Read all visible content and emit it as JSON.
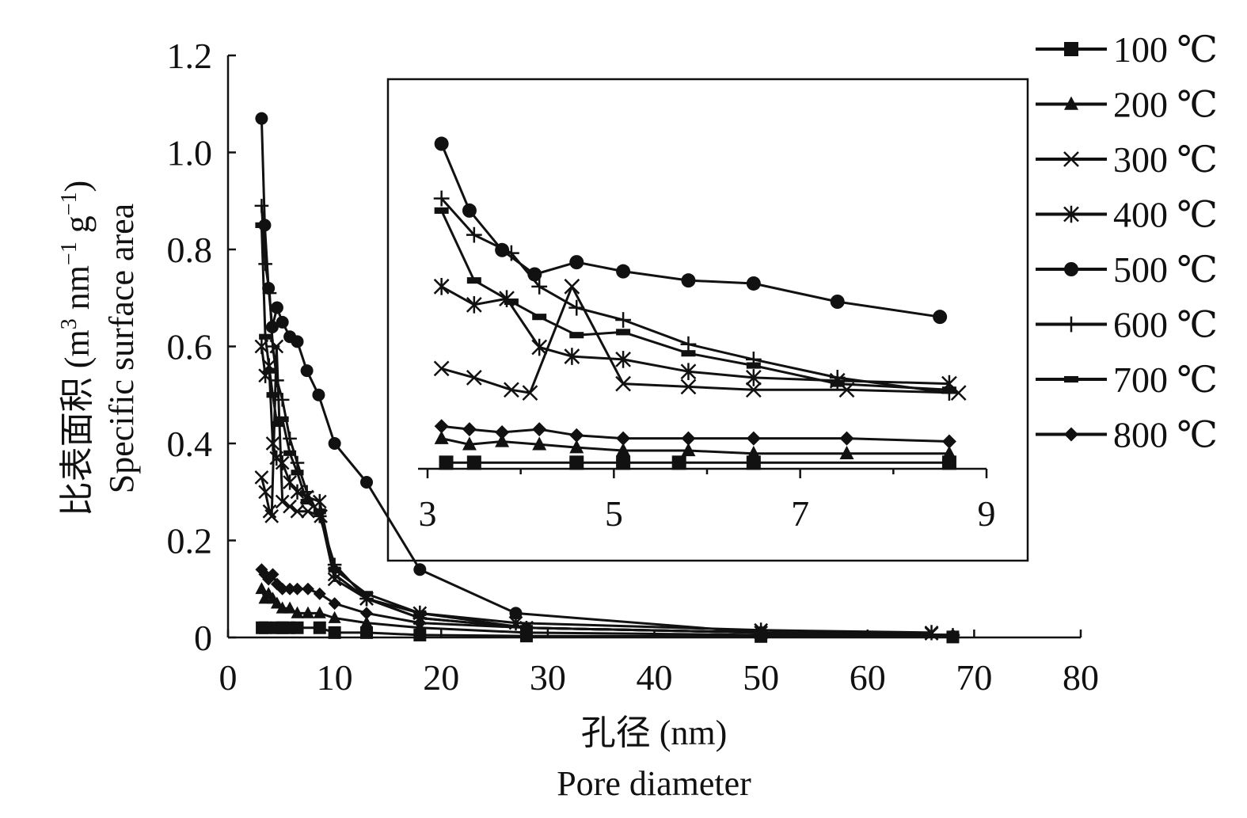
{
  "chart_data": {
    "type": "line",
    "xlabel_line1": "孔径 (nm)",
    "xlabel_line2": "Pore diameter",
    "ylabel_line1_prefix": "比表面积 (m",
    "ylabel_line1_sup1": "3",
    "ylabel_line1_mid": " nm",
    "ylabel_line1_sup2": "−1",
    "ylabel_line1_mid2": " g",
    "ylabel_line1_sup3": "−1",
    "ylabel_line1_suffix": ")",
    "ylabel_line2": "Specific surface area",
    "xlim": [
      0,
      80
    ],
    "ylim": [
      0,
      1.2
    ],
    "x_ticks": [
      "0",
      "10",
      "20",
      "30",
      "40",
      "50",
      "60",
      "70",
      "80"
    ],
    "y_ticks": [
      "0",
      "0.2",
      "0.4",
      "0.6",
      "0.8",
      "1.0",
      "1.2"
    ],
    "inset": {
      "xlim": [
        3,
        9
      ],
      "x_ticks": [
        "3",
        "5",
        "7",
        "9"
      ]
    },
    "series": [
      {
        "name": "100 ℃",
        "marker": "square",
        "x": [
          3.2,
          3.5,
          4.6,
          5.1,
          5.7,
          6.5,
          8.6,
          10,
          13,
          18,
          28,
          50,
          68
        ],
        "y": [
          0.02,
          0.02,
          0.02,
          0.02,
          0.02,
          0.02,
          0.02,
          0.01,
          0.01,
          0.005,
          0.003,
          0.002,
          0.001
        ]
      },
      {
        "name": "200 ℃",
        "marker": "triangle",
        "x": [
          3.15,
          3.45,
          3.8,
          4.2,
          4.6,
          5.1,
          5.8,
          6.5,
          7.5,
          8.6,
          10,
          13,
          18,
          28,
          50,
          68
        ],
        "y": [
          0.1,
          0.08,
          0.09,
          0.08,
          0.07,
          0.06,
          0.06,
          0.05,
          0.05,
          0.05,
          0.04,
          0.03,
          0.02,
          0.01,
          0.005,
          0.003
        ]
      },
      {
        "name": "300 ℃",
        "marker": "x",
        "x": [
          3.15,
          3.5,
          3.9,
          4.1,
          4.55,
          5.1,
          5.8,
          6.5,
          7.5,
          8.7,
          10,
          13,
          18,
          28,
          50,
          66
        ],
        "y": [
          0.33,
          0.3,
          0.26,
          0.25,
          0.6,
          0.28,
          0.27,
          0.26,
          0.26,
          0.25,
          0.12,
          0.08,
          0.04,
          0.02,
          0.01,
          0.008
        ]
      },
      {
        "name": "400 ℃",
        "marker": "star",
        "x": [
          3.15,
          3.5,
          3.85,
          4.2,
          4.55,
          5.1,
          5.8,
          6.5,
          7.4,
          8.6,
          10,
          13,
          18,
          27,
          50,
          66
        ],
        "y": [
          0.6,
          0.54,
          0.56,
          0.4,
          0.37,
          0.36,
          0.32,
          0.3,
          0.29,
          0.28,
          0.13,
          0.08,
          0.05,
          0.03,
          0.015,
          0.01
        ]
      },
      {
        "name": "500 ℃",
        "marker": "circle",
        "x": [
          3.15,
          3.45,
          3.8,
          4.15,
          4.6,
          5.1,
          5.8,
          6.5,
          7.4,
          8.5,
          10,
          13,
          18,
          27,
          50
        ],
        "y": [
          1.07,
          0.85,
          0.72,
          0.64,
          0.68,
          0.65,
          0.62,
          0.61,
          0.55,
          0.5,
          0.4,
          0.32,
          0.14,
          0.05,
          0.01
        ]
      },
      {
        "name": "600 ℃",
        "marker": "plus",
        "x": [
          3.15,
          3.5,
          3.9,
          4.2,
          4.6,
          5.1,
          5.8,
          6.5,
          7.4,
          8.6,
          10,
          13,
          18,
          28,
          50,
          68
        ],
        "y": [
          0.89,
          0.77,
          0.71,
          0.6,
          0.53,
          0.49,
          0.41,
          0.36,
          0.3,
          0.25,
          0.15,
          0.08,
          0.04,
          0.02,
          0.01,
          0.005
        ]
      },
      {
        "name": "700 ℃",
        "marker": "dash",
        "x": [
          3.15,
          3.5,
          3.9,
          4.2,
          4.6,
          5.1,
          5.8,
          6.5,
          7.4,
          8.6,
          10,
          13,
          18,
          28,
          50,
          68
        ],
        "y": [
          0.85,
          0.62,
          0.55,
          0.5,
          0.44,
          0.45,
          0.38,
          0.34,
          0.28,
          0.26,
          0.14,
          0.09,
          0.05,
          0.02,
          0.01,
          0.005
        ]
      },
      {
        "name": "800 ℃",
        "marker": "diamond",
        "x": [
          3.15,
          3.45,
          3.8,
          4.2,
          4.6,
          5.1,
          5.8,
          6.5,
          7.5,
          8.6,
          10,
          13,
          18,
          28,
          50,
          68
        ],
        "y": [
          0.14,
          0.13,
          0.12,
          0.13,
          0.11,
          0.1,
          0.1,
          0.1,
          0.1,
          0.09,
          0.07,
          0.05,
          0.03,
          0.02,
          0.01,
          0.005
        ]
      }
    ]
  }
}
